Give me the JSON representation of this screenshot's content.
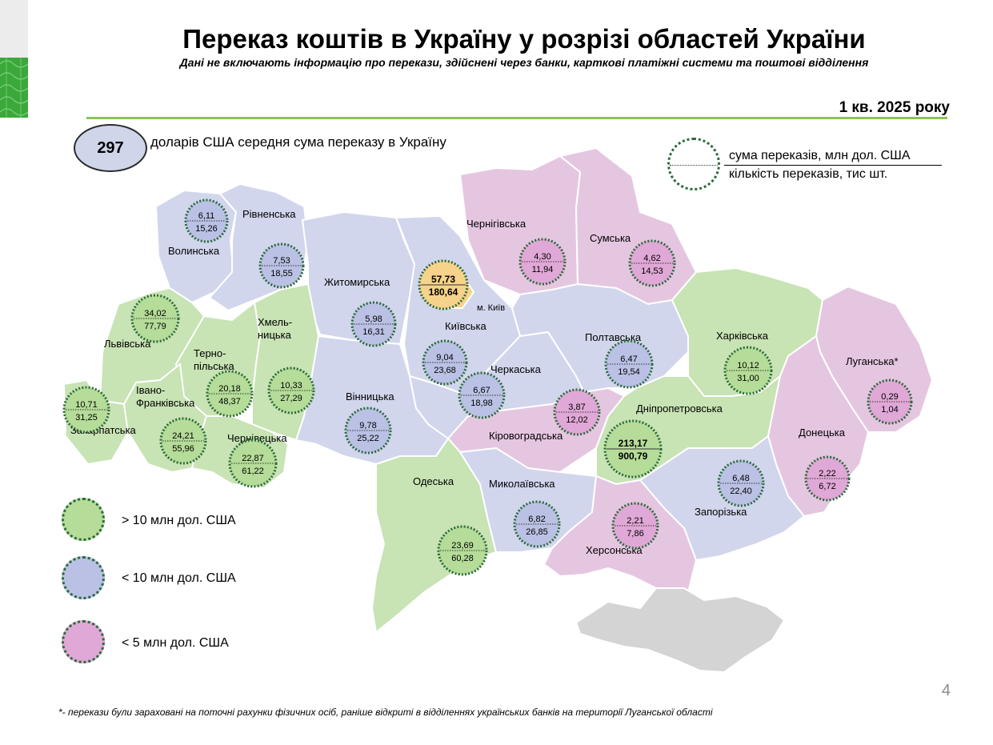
{
  "header": {
    "title": "Переказ коштів в Україну у розрізі областей України",
    "subtitle": "Дані не включають інформацію про перекази, здійснені через банки, карткові платіжні системи та поштові відділення",
    "period": "1 кв. 2025 року"
  },
  "average": {
    "value": "297",
    "text": "доларів США середня сума переказу в Україну"
  },
  "key": {
    "top": "сума переказів, млн дол. США",
    "bottom": "кількість переказів, тис шт."
  },
  "colors": {
    "green": "#c8e3b4",
    "blue": "#d1d6ec",
    "pink": "#e5c6e0",
    "orange": "#f6d28a",
    "crimea": "#d4d4d4",
    "border": "#ffffff",
    "dotted_ring": "#2a6a3a"
  },
  "city_label": "м. Київ",
  "regions": [
    {
      "name": "Волинська",
      "amount": "6,11",
      "count": "15,26",
      "cat": "blue"
    },
    {
      "name": "Рівненська",
      "amount": "7,53",
      "count": "18,55",
      "cat": "blue"
    },
    {
      "name": "Житомирська",
      "amount": "5,98",
      "count": "16,31",
      "cat": "blue"
    },
    {
      "name": "Київська",
      "amount": "9,04",
      "count": "23,68",
      "cat": "blue"
    },
    {
      "name": "м. Київ",
      "amount": "57,73",
      "count": "180,64",
      "cat": "orange"
    },
    {
      "name": "Чернігівська",
      "amount": "4,30",
      "count": "11,94",
      "cat": "pink"
    },
    {
      "name": "Сумська",
      "amount": "4,62",
      "count": "14,53",
      "cat": "pink"
    },
    {
      "name": "Львівська",
      "amount": "34,02",
      "count": "77,79",
      "cat": "green"
    },
    {
      "name": "Терно-\nпільська",
      "amount": "20,18",
      "count": "48,37",
      "cat": "green"
    },
    {
      "name": "Хмель-\nницька",
      "amount": "10,33",
      "count": "27,29",
      "cat": "green"
    },
    {
      "name": "Закарпатська",
      "amount": "10,71",
      "count": "31,25",
      "cat": "green"
    },
    {
      "name": "Івано-\nФранківська",
      "amount": "24,21",
      "count": "55,96",
      "cat": "green"
    },
    {
      "name": "Чернівецька",
      "amount": "22,87",
      "count": "61,22",
      "cat": "green"
    },
    {
      "name": "Вінницька",
      "amount": "9,78",
      "count": "25,22",
      "cat": "blue"
    },
    {
      "name": "Черкаська",
      "amount": "6,67",
      "count": "18,98",
      "cat": "blue"
    },
    {
      "name": "Полтавська",
      "amount": "6,47",
      "count": "19,54",
      "cat": "blue"
    },
    {
      "name": "Харківська",
      "amount": "10,12",
      "count": "31,00",
      "cat": "green"
    },
    {
      "name": "Луганська*",
      "amount": "0,29",
      "count": "1,04",
      "cat": "pink"
    },
    {
      "name": "Кіровоградська",
      "amount": "3,87",
      "count": "12,02",
      "cat": "pink"
    },
    {
      "name": "Дніпропетровська",
      "amount": "213,17",
      "count": "900,79",
      "cat": "green"
    },
    {
      "name": "Донецька",
      "amount": "2,22",
      "count": "6,72",
      "cat": "pink"
    },
    {
      "name": "Одеська",
      "amount": "23,69",
      "count": "60,28",
      "cat": "green"
    },
    {
      "name": "Миколаївська",
      "amount": "6,82",
      "count": "26,85",
      "cat": "blue"
    },
    {
      "name": "Запорізька",
      "amount": "6,48",
      "count": "22,40",
      "cat": "blue"
    },
    {
      "name": "Херсонська",
      "amount": "2,21",
      "count": "7,86",
      "cat": "pink"
    }
  ],
  "legend": [
    {
      "label": "> 10 млн дол. США",
      "color": "#b5dc98"
    },
    {
      "label": "< 10 млн дол. США",
      "color": "#bac1e4"
    },
    {
      "label": "< 5 млн дол. США",
      "color": "#e0a8d6"
    }
  ],
  "page_number": "4",
  "footnote": "*- перекази були зараховані на поточні рахунки фізичних осіб, раніше відкриті в відділеннях українських банків на території Луганської області"
}
